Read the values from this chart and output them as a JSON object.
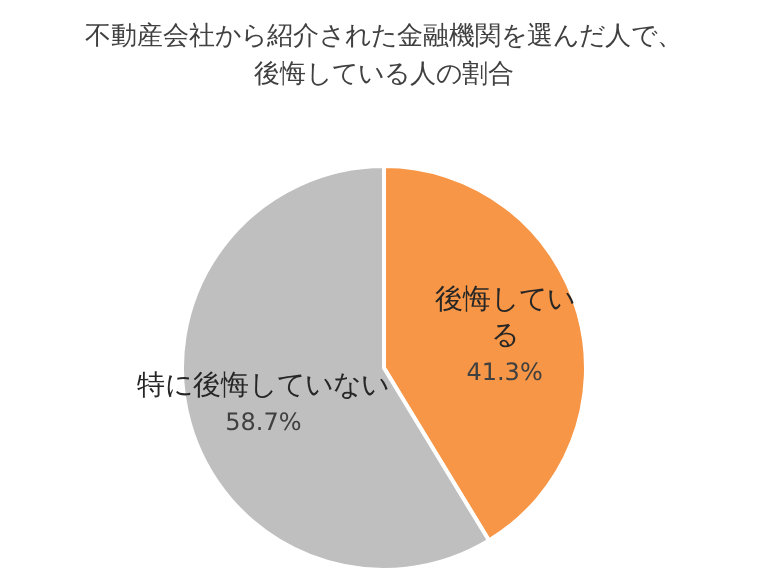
{
  "chart_data": {
    "type": "pie",
    "title": "不動産会社から紹介された金融機関を選んだ人で、後悔している人の割合",
    "categories": [
      "後悔している",
      "特に後悔していない"
    ],
    "values": [
      41.3,
      58.7
    ],
    "colors": [
      "#f79646",
      "#bfbfbf"
    ],
    "value_labels": [
      "41.3%",
      "58.7%"
    ],
    "legend": false
  }
}
